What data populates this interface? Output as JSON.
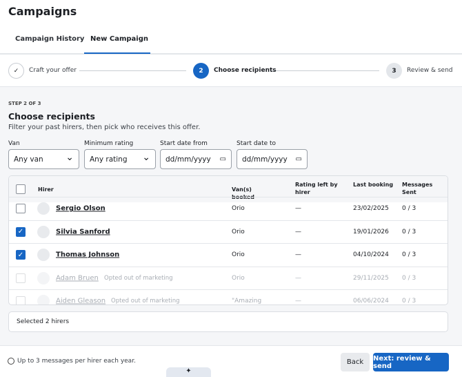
{
  "header": {
    "title": "Campaigns"
  },
  "tabs": [
    {
      "label": "Campaign History",
      "active": false
    },
    {
      "label": "New Campaign",
      "active": true
    }
  ],
  "steps": [
    {
      "marker": "✓",
      "label": "Craft your offer",
      "state": "done"
    },
    {
      "marker": "2",
      "label": "Choose recipients",
      "state": "current"
    },
    {
      "marker": "3",
      "label": "Review & send",
      "state": "todo"
    }
  ],
  "section": {
    "eyebrow": "STEP 2 OF 3",
    "title": "Choose recipients",
    "subtitle": "Filter your past hirers, then pick who receives this offer."
  },
  "filters": [
    {
      "label": "Van",
      "value": "Any van",
      "kind": "select"
    },
    {
      "label": "Minimum rating",
      "value": "Any rating",
      "kind": "select"
    },
    {
      "label": "Start date from",
      "value": "dd/mm/yyyy",
      "kind": "date"
    },
    {
      "label": "Start date to",
      "value": "dd/mm/yyyy",
      "kind": "date"
    }
  ],
  "table": {
    "columns": [
      "Hirer",
      "Van(s) booked",
      "Rating left by hirer",
      "Last booking",
      "Messages Sent"
    ],
    "rows": [
      {
        "name": "Sergio Olson",
        "note": null,
        "van": "Orio",
        "rating": "—",
        "last": "23/02/2025",
        "sent": "0 / 3",
        "checked": false,
        "disabled": false
      },
      {
        "name": "Silvia Sanford",
        "note": null,
        "van": "Orio",
        "rating": "—",
        "last": "19/01/2026",
        "sent": "0 / 3",
        "checked": true,
        "disabled": false
      },
      {
        "name": "Thomas Johnson",
        "note": null,
        "van": "Orio",
        "rating": "—",
        "last": "04/10/2024",
        "sent": "0 / 3",
        "checked": true,
        "disabled": false
      },
      {
        "name": "Adam Bruen",
        "note": "Opted out of marketing",
        "van": "Orio",
        "rating": "—",
        "last": "29/11/2025",
        "sent": "0 / 3",
        "checked": false,
        "disabled": true
      },
      {
        "name": "Aiden Gleason",
        "note": "Opted out of marketing",
        "van": "\"Amazing",
        "rating": "—",
        "last": "06/06/2024",
        "sent": "0 / 3",
        "checked": false,
        "disabled": true
      }
    ]
  },
  "selection": "Selected 2 hirers",
  "footer": {
    "note": "Up to 3 messages per hirer each year.",
    "back": "Back",
    "next": "Next: review & send"
  }
}
